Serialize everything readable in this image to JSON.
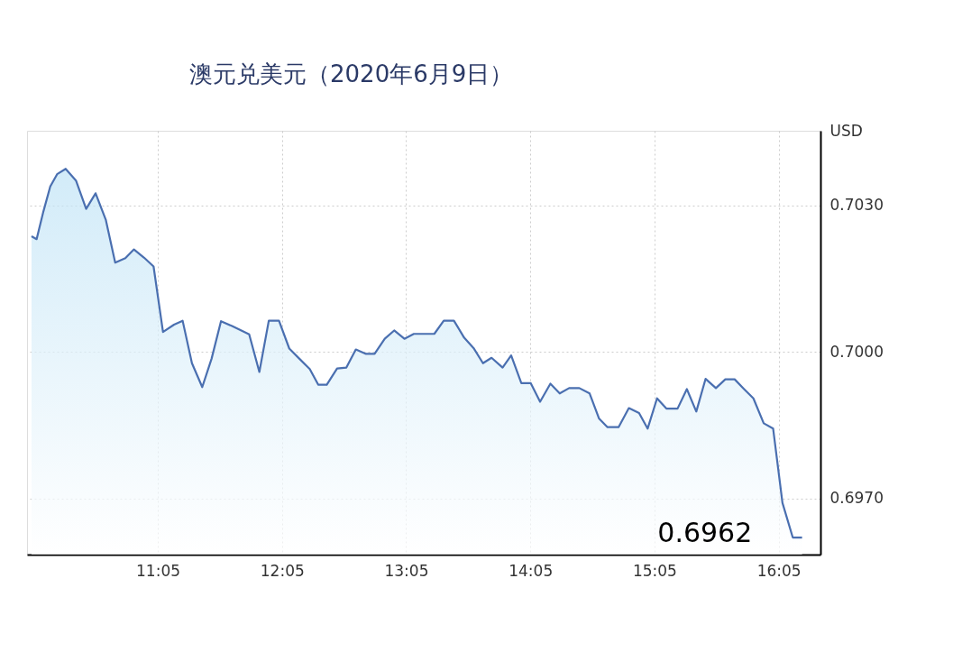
{
  "chart_data": {
    "type": "area",
    "title": "澳元兑美元（2020年6月9日）",
    "ylabel": "USD",
    "x": [
      10.066,
      10.107,
      10.162,
      10.217,
      10.272,
      10.341,
      10.424,
      10.506,
      10.582,
      10.664,
      10.74,
      10.822,
      10.891,
      10.973,
      11.049,
      11.125,
      11.214,
      11.283,
      11.358,
      11.441,
      11.516,
      11.592,
      11.681,
      11.819,
      11.901,
      11.977,
      12.059,
      12.142,
      12.224,
      12.307,
      12.375,
      12.444,
      12.527,
      12.602,
      12.678,
      12.76,
      12.829,
      12.911,
      12.987,
      13.069,
      13.145,
      13.31,
      13.386,
      13.468,
      13.551,
      13.626,
      13.702,
      13.771,
      13.86,
      13.929,
      14.011,
      14.087,
      14.162,
      14.245,
      14.32,
      14.396,
      14.478,
      14.561,
      14.636,
      14.705,
      14.794,
      14.877,
      14.959,
      15.028,
      15.104,
      15.179,
      15.269,
      15.344,
      15.42,
      15.495,
      15.578,
      15.654,
      15.729,
      15.805,
      15.88,
      15.963,
      16.039,
      16.114,
      16.197,
      16.272
    ],
    "series": [
      {
        "color": "#4a6fb0",
        "values": [
          0.70237,
          0.70231,
          0.70288,
          0.70339,
          0.70364,
          0.70375,
          0.70351,
          0.70293,
          0.70325,
          0.70271,
          0.70183,
          0.70192,
          0.7021,
          0.70193,
          0.70175,
          0.70041,
          0.70056,
          0.70064,
          0.69977,
          0.69928,
          0.69986,
          0.70063,
          0.70053,
          0.70036,
          0.69959,
          0.70064,
          0.70064,
          0.70007,
          0.69986,
          0.69965,
          0.69933,
          0.69933,
          0.69966,
          0.69968,
          0.70005,
          0.69996,
          0.69996,
          0.70027,
          0.70044,
          0.70027,
          0.70037,
          0.70037,
          0.70064,
          0.70064,
          0.70029,
          0.70008,
          0.69977,
          0.69988,
          0.69968,
          0.69993,
          0.69936,
          0.69936,
          0.69898,
          0.69935,
          0.69915,
          0.69926,
          0.69926,
          0.69915,
          0.69864,
          0.69846,
          0.69846,
          0.69885,
          0.69875,
          0.69843,
          0.69905,
          0.69884,
          0.69884,
          0.69924,
          0.69878,
          0.69945,
          0.69926,
          0.69944,
          0.69944,
          0.69924,
          0.69905,
          0.69854,
          0.69843,
          0.69691,
          0.6962,
          0.6962
        ]
      }
    ],
    "xlim": [
      10.03,
      16.42
    ],
    "xticks": [
      {
        "value": 11.0833,
        "label": "11:05"
      },
      {
        "value": 12.0833,
        "label": "12:05"
      },
      {
        "value": 13.0833,
        "label": "13:05"
      },
      {
        "value": 14.0833,
        "label": "14:05"
      },
      {
        "value": 15.0833,
        "label": "15:05"
      },
      {
        "value": 16.0833,
        "label": "16:05"
      }
    ],
    "ylim": [
      0.69585,
      0.70453
    ],
    "yticks": [
      {
        "value": 0.697,
        "label": "0.6970"
      },
      {
        "value": 0.7,
        "label": "0.7000"
      },
      {
        "value": 0.703,
        "label": "0.7030"
      }
    ],
    "grid": true,
    "annotations": [
      {
        "text": "0.6962",
        "x": 16.197,
        "y": 0.6962
      }
    ]
  }
}
